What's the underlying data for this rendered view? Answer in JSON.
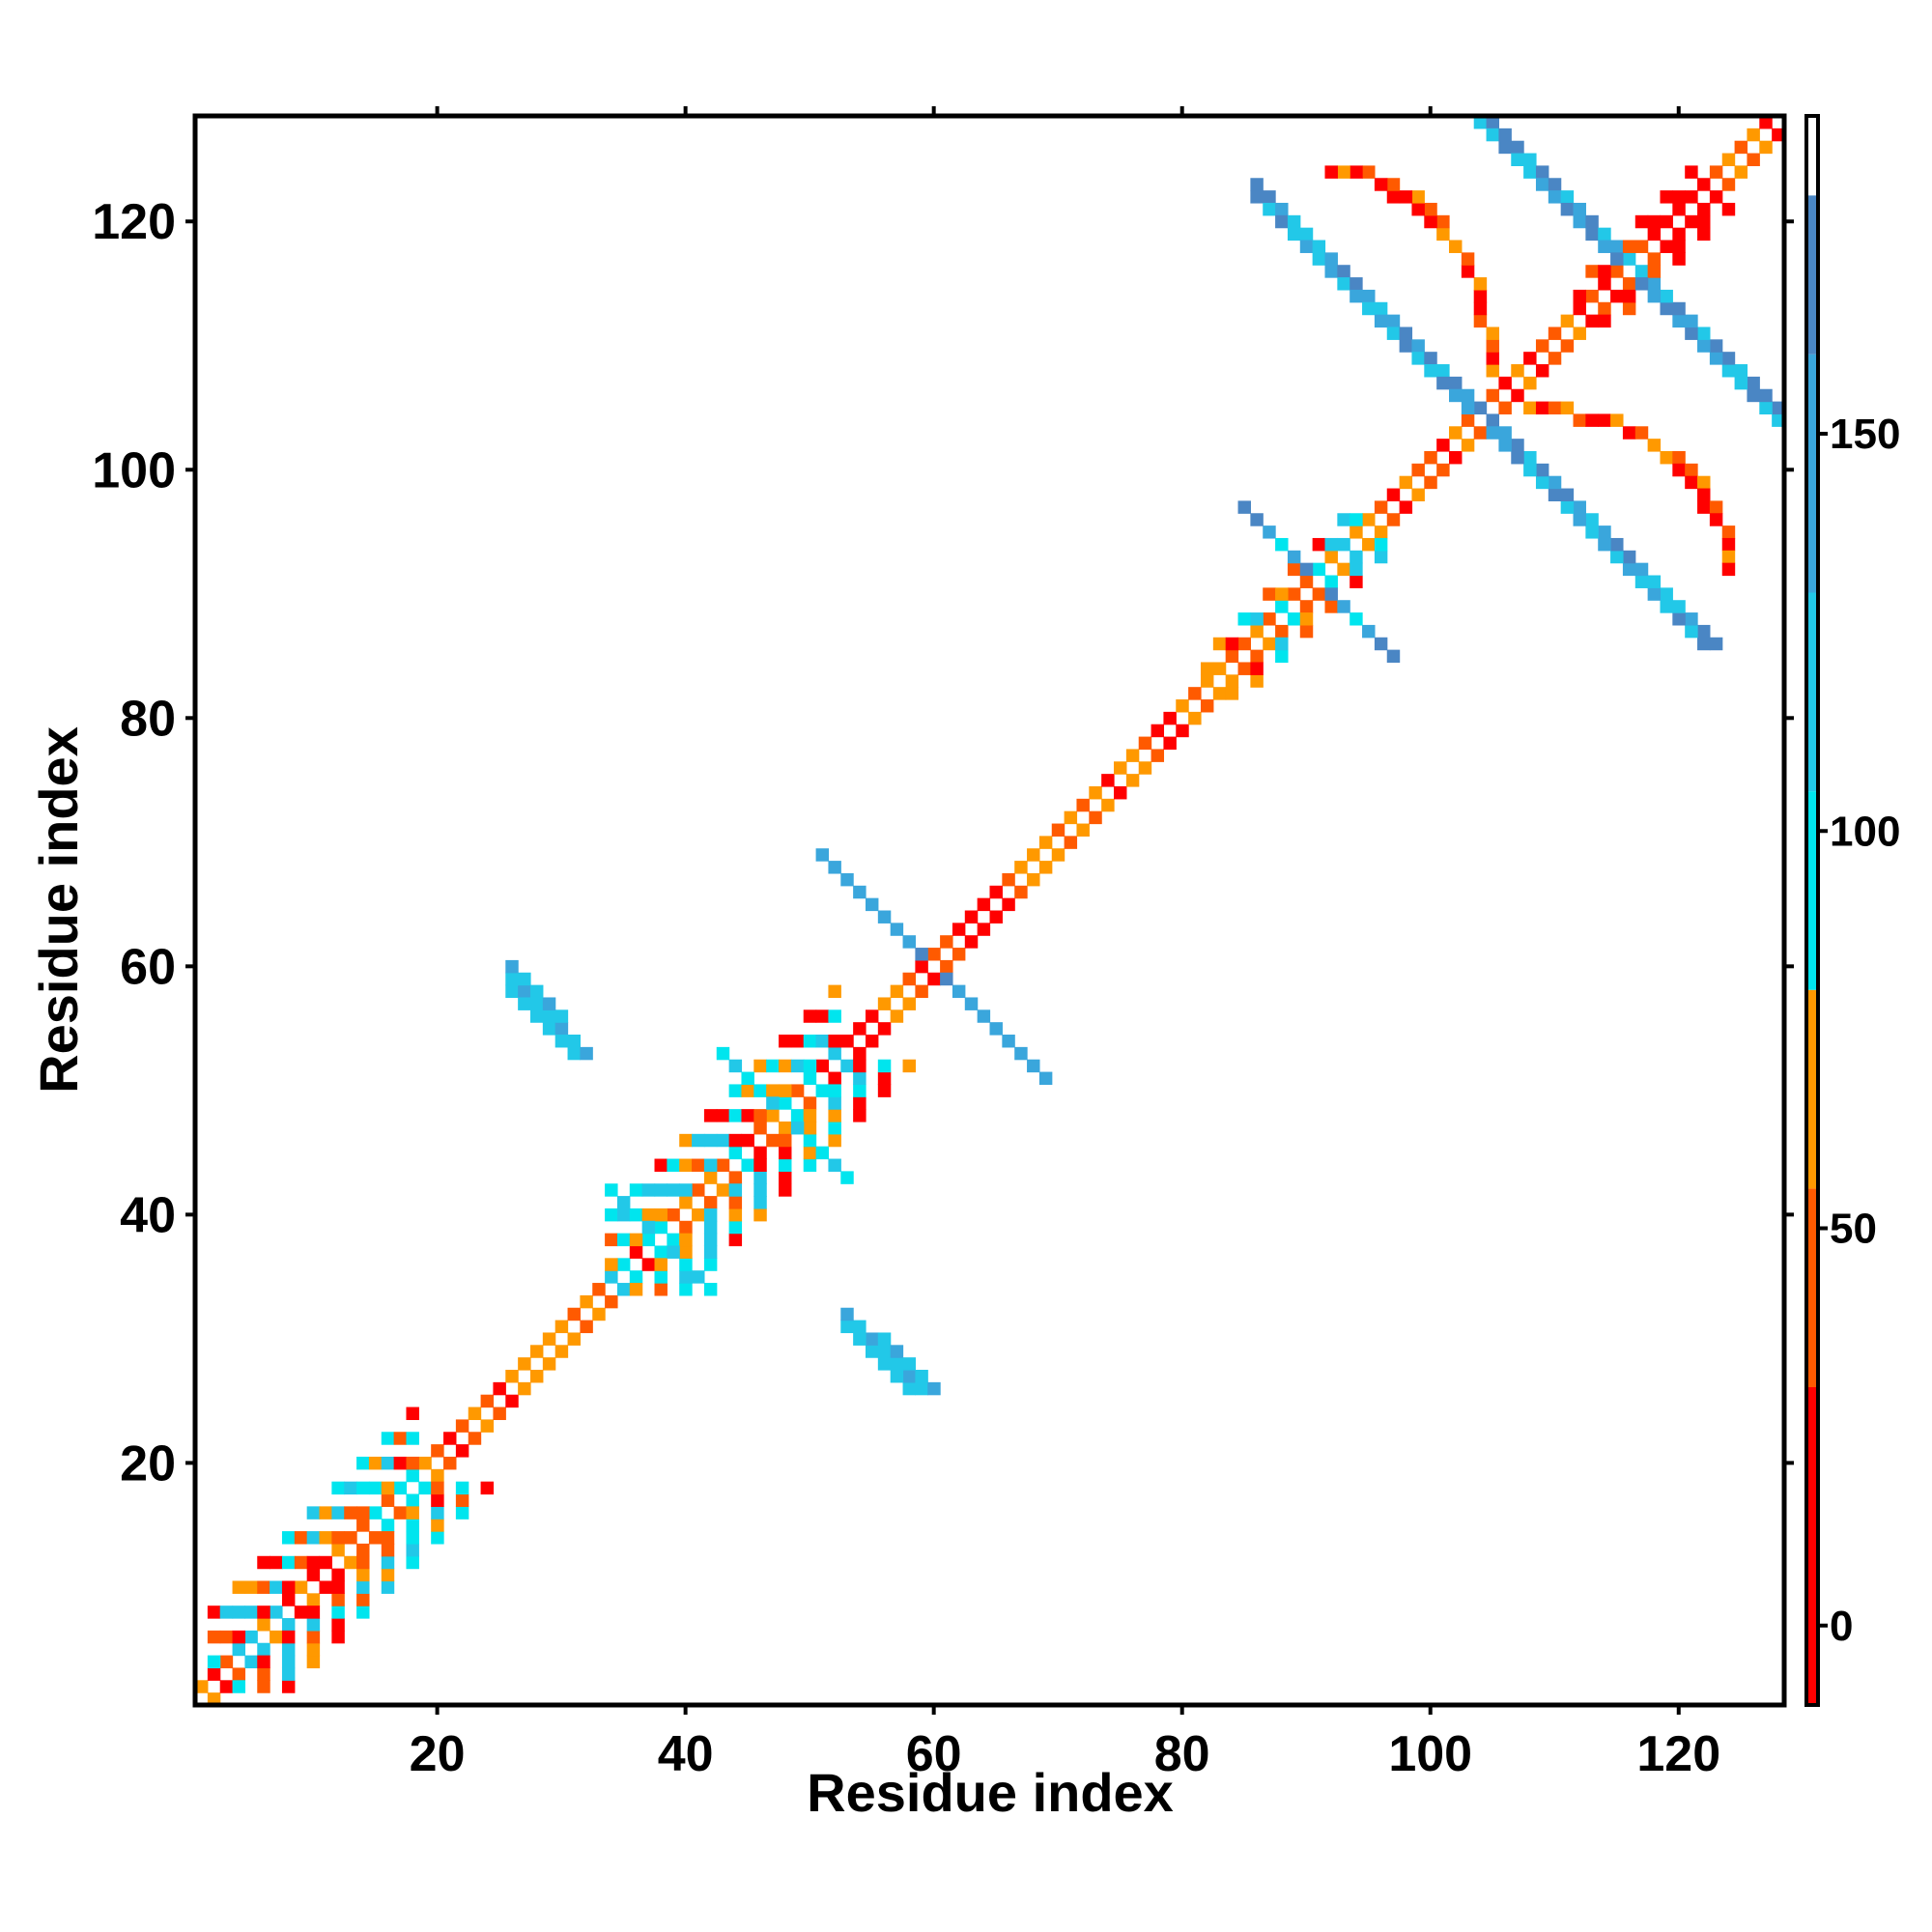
{
  "chart_data": {
    "type": "heatmap",
    "title": "",
    "xlabel": "Residue index",
    "ylabel": "Residue index",
    "xlim": [
      1,
      128
    ],
    "ylim": [
      1,
      128
    ],
    "xticks": [
      20,
      40,
      60,
      80,
      100,
      120
    ],
    "yticks": [
      20,
      40,
      60,
      80,
      100,
      120
    ],
    "colorbar": {
      "range": [
        -10,
        190
      ],
      "ticks": [
        0,
        50,
        100,
        150
      ],
      "bands": [
        {
          "from": -10,
          "to": 30,
          "color": "#ff0000"
        },
        {
          "from": 30,
          "to": 55,
          "color": "#ff5a00"
        },
        {
          "from": 55,
          "to": 80,
          "color": "#ff9900"
        },
        {
          "from": 80,
          "to": 105,
          "color": "#00e5ee"
        },
        {
          "from": 105,
          "to": 130,
          "color": "#22c8e8"
        },
        {
          "from": 130,
          "to": 160,
          "color": "#3aa6dc"
        },
        {
          "from": 160,
          "to": 180,
          "color": "#4a86c4"
        },
        {
          "from": 180,
          "to": 190,
          "color": "#ffffff"
        }
      ]
    },
    "cell_palette": [
      "#ff0000",
      "#ff5a00",
      "#ff9900",
      "#00e5ee",
      "#22c8e8",
      "#3aa6dc",
      "#4a86c4"
    ],
    "regions": [
      {
        "kind": "diagonal_band",
        "from": 1,
        "to": 127,
        "half_width": 1,
        "colors": [
          0,
          1,
          2
        ]
      },
      {
        "kind": "diagonal_band",
        "from": 2,
        "to": 18,
        "half_width": 6,
        "colors": [
          0,
          1,
          2,
          3,
          4
        ]
      },
      {
        "kind": "diagonal_band",
        "from": 34,
        "to": 52,
        "half_width": 6,
        "colors": [
          0,
          1,
          2,
          3,
          4
        ]
      },
      {
        "kind": "diagonal_band",
        "from": 82,
        "to": 94,
        "half_width": 3,
        "colors": [
          0,
          1,
          2,
          3,
          4
        ]
      },
      {
        "kind": "diagonal_band",
        "from": 112,
        "to": 121,
        "half_width": 3,
        "colors": [
          0,
          1
        ]
      },
      {
        "kind": "antidiagonal_strip",
        "cx": 104,
        "cy": 104,
        "extent": 18,
        "width": 2,
        "colors": [
          5,
          6,
          4
        ]
      },
      {
        "kind": "antidiagonal_strip",
        "cx": 116,
        "cy": 116,
        "extent": 12,
        "width": 2,
        "colors": [
          5,
          6,
          4
        ]
      },
      {
        "kind": "antidiagonal_strip",
        "cx": 60,
        "cy": 60,
        "extent": 9,
        "width": 1,
        "colors": [
          6,
          5
        ]
      },
      {
        "kind": "antidiagonal_strip",
        "cx": 91,
        "cy": 91,
        "extent": 6,
        "width": 1,
        "colors": [
          6,
          5,
          3
        ]
      },
      {
        "kind": "antidiagonal_strip",
        "cx": 48,
        "cy": 48,
        "extent": 5,
        "width": 1,
        "colors": [
          3,
          4,
          5
        ]
      },
      {
        "kind": "antidiagonal_strip",
        "cx": 38,
        "cy": 38,
        "extent": 4,
        "width": 1,
        "colors": [
          3,
          4,
          5
        ]
      },
      {
        "kind": "diagonal_patch",
        "x": 26,
        "y": 58,
        "length": 6,
        "width": 2,
        "colors": [
          4,
          5
        ]
      },
      {
        "kind": "diagonal_patch",
        "x": 55,
        "y": 30,
        "length": 5,
        "width": 2,
        "colors": [
          4,
          5
        ]
      },
      {
        "kind": "arc",
        "cx": 104,
        "cy": 104,
        "from": 104,
        "to": 127,
        "radius": 16,
        "colors": [
          0,
          1,
          2
        ]
      }
    ]
  }
}
